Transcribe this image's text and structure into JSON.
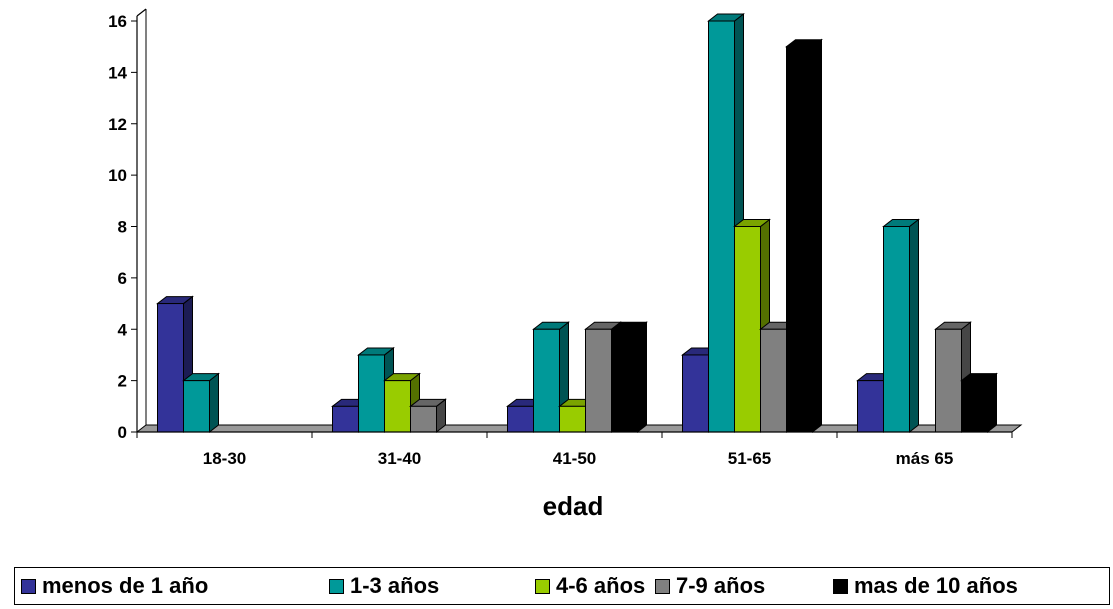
{
  "chart_data": {
    "type": "bar",
    "title": "",
    "xlabel": "edad",
    "ylabel": "",
    "ylim": [
      0,
      16
    ],
    "yticks": [
      "0",
      "2",
      "4",
      "6",
      "8",
      "10",
      "12",
      "14",
      "16"
    ],
    "categories": [
      "18-30",
      "31-40",
      "41-50",
      "51-65",
      "más 65"
    ],
    "series": [
      {
        "name": "menos de 1 año",
        "color": "#333399",
        "values": [
          5,
          1,
          1,
          3,
          2
        ]
      },
      {
        "name": "1-3 años",
        "color": "#009999",
        "values": [
          2,
          3,
          4,
          16,
          8
        ]
      },
      {
        "name": "4-6 años",
        "color": "#99cc00",
        "values": [
          0,
          2,
          1,
          8,
          0
        ]
      },
      {
        "name": "7-9 años",
        "color": "#808080",
        "values": [
          0,
          1,
          4,
          4,
          4
        ]
      },
      {
        "name": "mas de 10 años",
        "color": "#000000",
        "values": [
          0,
          0,
          4,
          15,
          2
        ]
      }
    ],
    "legend_position": "bottom",
    "grid": false,
    "style": "3d-column"
  }
}
